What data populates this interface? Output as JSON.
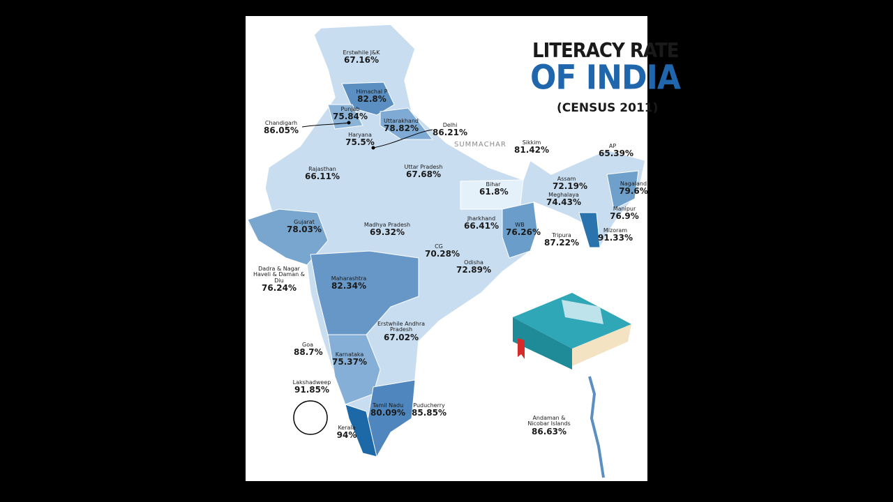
{
  "header": {
    "title_line1": "LITERACY RATE",
    "title_line2": "OF INDIA",
    "subtitle": "(CENSUS 2011)"
  },
  "watermark": "SUMMACHAR",
  "regions": [
    {
      "name": "Erstwhile J&K",
      "rate": "67.16%"
    },
    {
      "name": "Himachal P",
      "rate": "82.8%"
    },
    {
      "name": "Punjab",
      "rate": "75.84%"
    },
    {
      "name": "Uttarakhand",
      "rate": "78.82%"
    },
    {
      "name": "Haryana",
      "rate": "75.5%"
    },
    {
      "name": "Chandigarh",
      "rate": "86.05%"
    },
    {
      "name": "Delhi",
      "rate": "86.21%"
    },
    {
      "name": "Rajasthan",
      "rate": "66.11%"
    },
    {
      "name": "Uttar Pradesh",
      "rate": "67.68%"
    },
    {
      "name": "Sikkim",
      "rate": "81.42%"
    },
    {
      "name": "AP",
      "rate": "65.39%"
    },
    {
      "name": "Bihar",
      "rate": "61.8%"
    },
    {
      "name": "Assam",
      "rate": "72.19%"
    },
    {
      "name": "Nagaland",
      "rate": "79.6%"
    },
    {
      "name": "Meghalaya",
      "rate": "74.43%"
    },
    {
      "name": "Manipur",
      "rate": "76.9%"
    },
    {
      "name": "Gujarat",
      "rate": "78.03%"
    },
    {
      "name": "Madhya Pradesh",
      "rate": "69.32%"
    },
    {
      "name": "Jharkhand",
      "rate": "66.41%"
    },
    {
      "name": "WB",
      "rate": "76.26%"
    },
    {
      "name": "Tripura",
      "rate": "87.22%"
    },
    {
      "name": "Mizoram",
      "rate": "91.33%"
    },
    {
      "name": "CG",
      "rate": "70.28%"
    },
    {
      "name": "Odisha",
      "rate": "72.89%"
    },
    {
      "name": "Dadra & Nagar Haveli & Daman & Diu",
      "rate": "76.24%"
    },
    {
      "name": "Maharashtra",
      "rate": "82.34%"
    },
    {
      "name": "Erstwhile Andhra Pradesh",
      "rate": "67.02%"
    },
    {
      "name": "Goa",
      "rate": "88.7%"
    },
    {
      "name": "Karnataka",
      "rate": "75.37%"
    },
    {
      "name": "Lakshadweep",
      "rate": "91.85%"
    },
    {
      "name": "Tamil Nadu",
      "rate": "80.09%"
    },
    {
      "name": "Puducherry",
      "rate": "85.85%"
    },
    {
      "name": "Kerala",
      "rate": "94%"
    },
    {
      "name": "Andaman & Nicobar Islands",
      "rate": "86.63%"
    }
  ]
}
